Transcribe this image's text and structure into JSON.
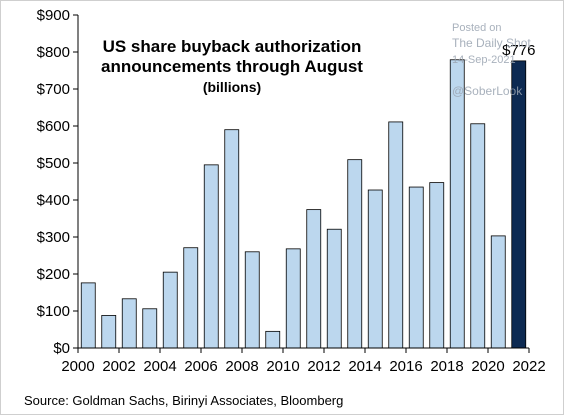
{
  "chart_data": {
    "type": "bar",
    "title": "US share buyback authorization announcements through August",
    "title_lines": [
      "US share buyback authorization",
      "announcements through August"
    ],
    "subtitle": "(billions)",
    "xlabel": "",
    "ylabel": "",
    "categories": [
      "2000",
      "2001",
      "2002",
      "2003",
      "2004",
      "2005",
      "2006",
      "2007",
      "2008",
      "2009",
      "2010",
      "2011",
      "2012",
      "2013",
      "2014",
      "2015",
      "2016",
      "2017",
      "2018",
      "2019",
      "2020",
      "2021"
    ],
    "values": [
      176,
      88,
      133,
      106,
      205,
      271,
      495,
      590,
      260,
      45,
      268,
      374,
      321,
      509,
      427,
      611,
      435,
      447,
      779,
      606,
      303,
      776
    ],
    "highlight_index": 21,
    "highlight_label": "$776",
    "xlim": [
      2000,
      2022
    ],
    "x_ticks": [
      "2000",
      "2002",
      "2004",
      "2006",
      "2008",
      "2010",
      "2012",
      "2014",
      "2016",
      "2018",
      "2020",
      "2022"
    ],
    "ylim": [
      0,
      900
    ],
    "y_ticks": [
      0,
      100,
      200,
      300,
      400,
      500,
      600,
      700,
      800,
      900
    ],
    "y_tick_labels": [
      "$0",
      "$100",
      "$200",
      "$300",
      "$400",
      "$500",
      "$600",
      "$700",
      "$800",
      "$900"
    ],
    "grid": false,
    "legend": "none",
    "colors": {
      "bar": "#bcd7ee",
      "bar_edge": "#000000",
      "highlight": "#0d2a52"
    }
  },
  "watermark": {
    "line1": "Posted on",
    "line2": "The Daily Shot",
    "line3": "14-Sep-2021",
    "line4": "@SoberLook"
  },
  "source": "Source: Goldman Sachs, Birinyi Associates, Bloomberg"
}
